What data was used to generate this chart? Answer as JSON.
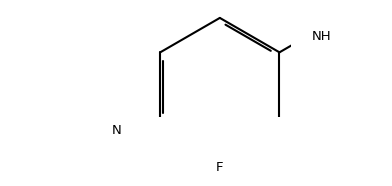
{
  "bg_color": "#ffffff",
  "line_color": "#000000",
  "line_width": 1.5,
  "figsize": [
    3.92,
    1.86
  ],
  "dpi": 100,
  "label_fontsize": 9.5,
  "xlim": [
    -0.05,
    3.92
  ],
  "ylim": [
    -1.05,
    1.05
  ],
  "scale": 1.0
}
